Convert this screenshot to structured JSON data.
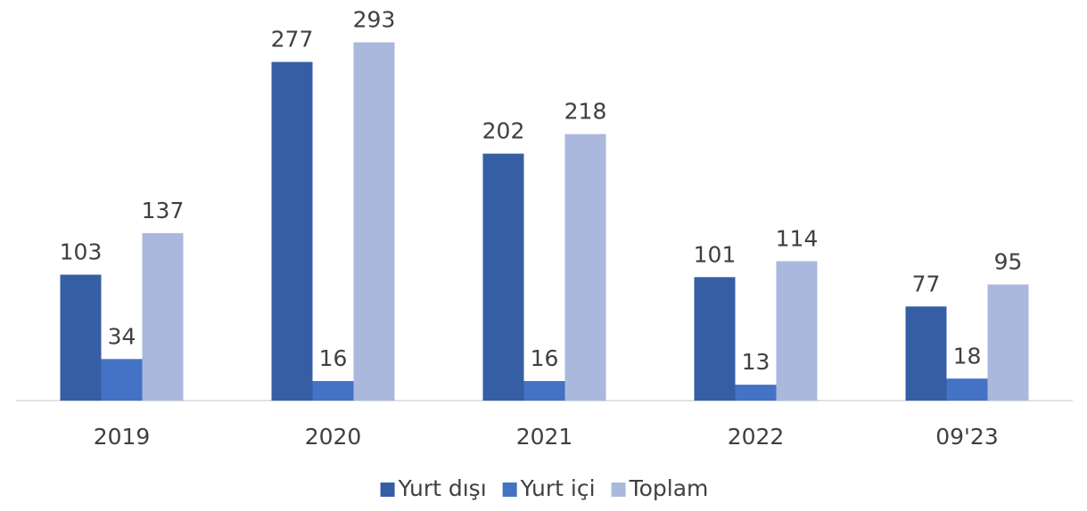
{
  "chart_data": {
    "type": "bar",
    "categories": [
      "2019",
      "2020",
      "2021",
      "2022",
      "09'23"
    ],
    "series": [
      {
        "name": "Yurt dışı",
        "color": "#355ea4",
        "values": [
          103,
          277,
          202,
          101,
          77
        ]
      },
      {
        "name": "Yurt içi",
        "color": "#4472c4",
        "values": [
          34,
          16,
          16,
          13,
          18
        ]
      },
      {
        "name": "Toplam",
        "color": "#a9b8dc",
        "values": [
          137,
          293,
          218,
          114,
          95
        ]
      }
    ],
    "ylim": [
      0,
      300
    ],
    "legend": "bottom"
  }
}
